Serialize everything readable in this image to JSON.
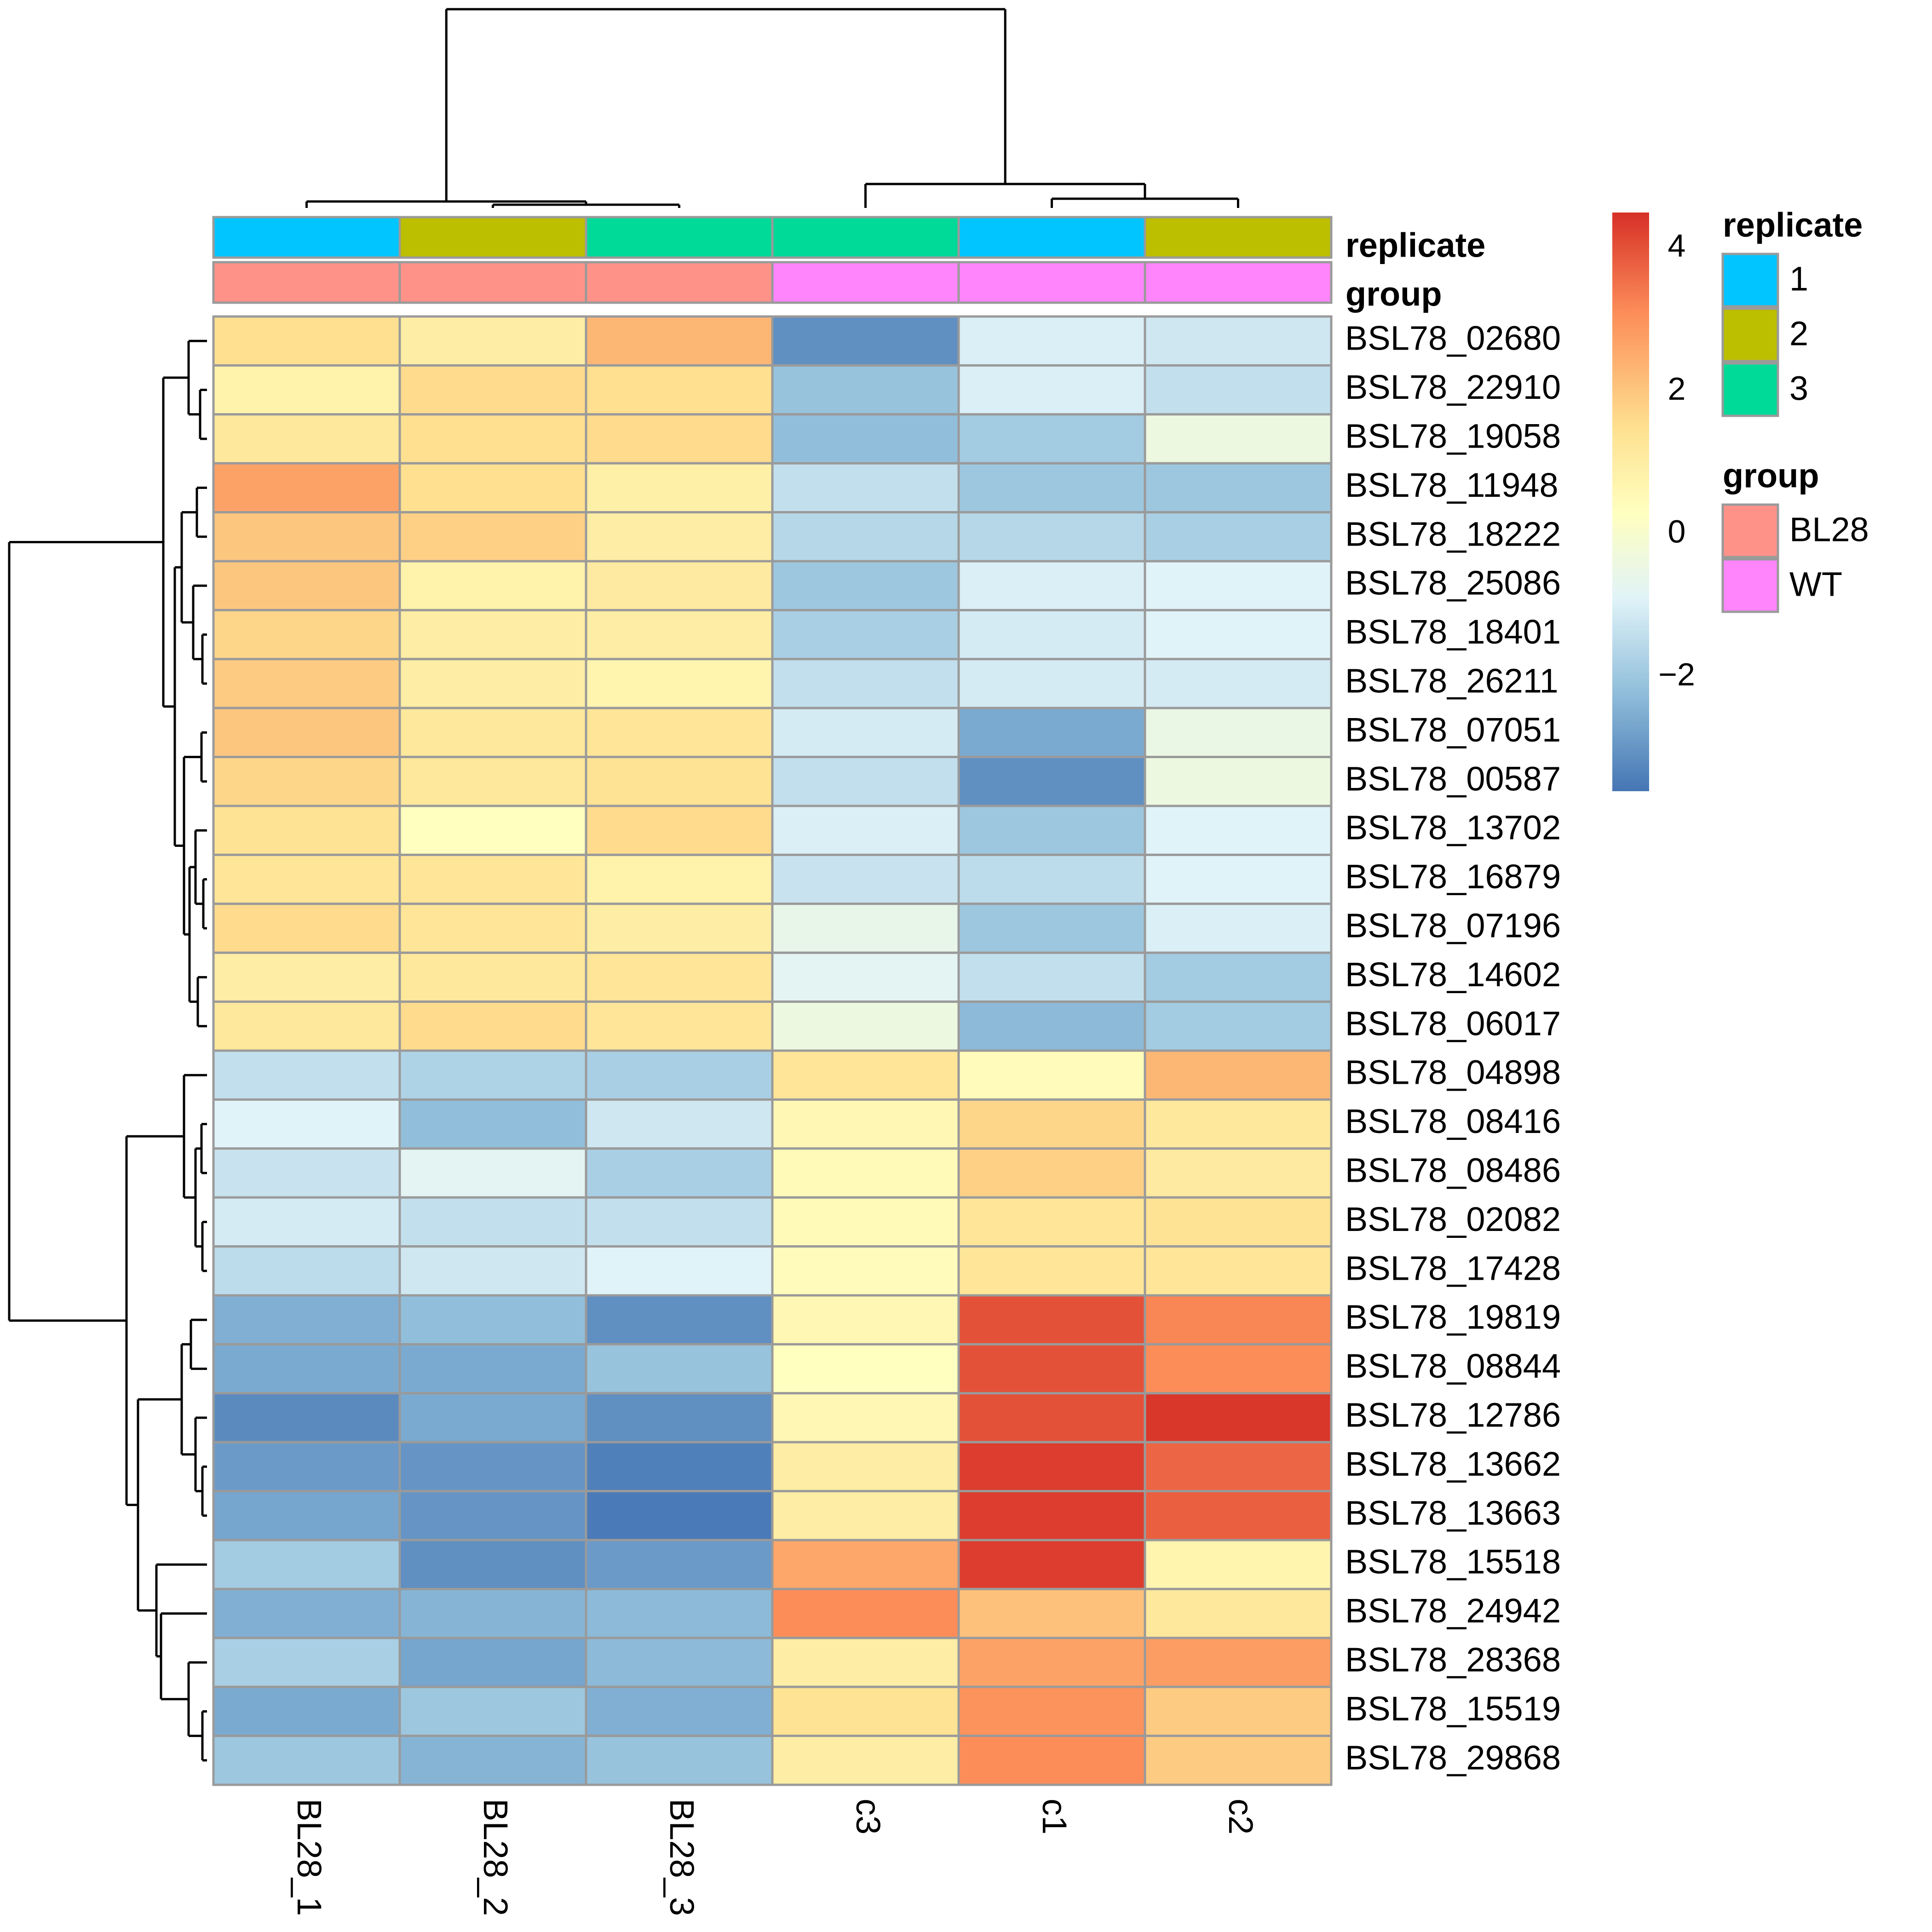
{
  "chart_data": {
    "type": "heatmap",
    "columns": [
      "BL28_1",
      "BL28_2",
      "BL28_3",
      "c3",
      "c1",
      "c2"
    ],
    "rows": [
      "BSL78_02680",
      "BSL78_22910",
      "BSL78_19058",
      "BSL78_11948",
      "BSL78_18222",
      "BSL78_25086",
      "BSL78_18401",
      "BSL78_26211",
      "BSL78_07051",
      "BSL78_00587",
      "BSL78_13702",
      "BSL78_16879",
      "BSL78_07196",
      "BSL78_14602",
      "BSL78_06017",
      "BSL78_04898",
      "BSL78_08416",
      "BSL78_08486",
      "BSL78_02082",
      "BSL78_17428",
      "BSL78_19819",
      "BSL78_08844",
      "BSL78_12786",
      "BSL78_13662",
      "BSL78_13663",
      "BSL78_15518",
      "BSL78_24942",
      "BSL78_28368",
      "BSL78_15519",
      "BSL78_29868"
    ],
    "values": [
      [
        1.5,
        1.0,
        2.3,
        -3.1,
        -1.0,
        -1.2
      ],
      [
        0.8,
        1.6,
        1.5,
        -2.1,
        -1.0,
        -1.4
      ],
      [
        1.2,
        1.5,
        1.6,
        -2.2,
        -1.9,
        -0.4
      ],
      [
        2.7,
        1.5,
        0.9,
        -1.4,
        -2.0,
        -2.0
      ],
      [
        2.0,
        1.8,
        1.0,
        -1.6,
        -1.6,
        -1.8
      ],
      [
        2.0,
        0.8,
        1.1,
        -2.0,
        -1.0,
        -0.9
      ],
      [
        1.7,
        1.0,
        1.0,
        -1.8,
        -1.1,
        -0.9
      ],
      [
        1.9,
        1.0,
        0.7,
        -1.4,
        -1.1,
        -1.1
      ],
      [
        2.0,
        1.2,
        1.3,
        -1.1,
        -2.6,
        -0.5
      ],
      [
        1.7,
        1.2,
        1.4,
        -1.4,
        -3.1,
        -0.4
      ],
      [
        1.4,
        0.3,
        1.6,
        -1.0,
        -2.0,
        -0.9
      ],
      [
        1.3,
        1.3,
        0.8,
        -1.3,
        -1.5,
        -0.9
      ],
      [
        1.6,
        1.3,
        1.0,
        -0.6,
        -2.0,
        -1.0
      ],
      [
        1.0,
        1.2,
        1.3,
        -0.8,
        -1.4,
        -1.9
      ],
      [
        1.2,
        1.6,
        1.3,
        -0.4,
        -2.3,
        -1.9
      ],
      [
        -1.4,
        -1.7,
        -1.8,
        1.3,
        0.4,
        2.3
      ],
      [
        -0.9,
        -2.2,
        -1.2,
        0.6,
        1.7,
        1.2
      ],
      [
        -1.3,
        -0.8,
        -1.8,
        0.5,
        1.8,
        1.1
      ],
      [
        -1.1,
        -1.4,
        -1.4,
        0.5,
        1.3,
        1.4
      ],
      [
        -1.5,
        -1.2,
        -0.9,
        0.4,
        1.3,
        1.3
      ],
      [
        -2.5,
        -2.2,
        -3.1,
        0.6,
        4.0,
        3.2
      ],
      [
        -2.6,
        -2.6,
        -2.1,
        0.3,
        4.0,
        3.1
      ],
      [
        -3.2,
        -2.6,
        -3.1,
        0.6,
        4.0,
        4.4
      ],
      [
        -2.9,
        -3.0,
        -3.4,
        1.0,
        4.3,
        3.7
      ],
      [
        -2.7,
        -3.0,
        -3.5,
        1.0,
        4.3,
        3.8
      ],
      [
        -1.9,
        -3.1,
        -2.9,
        2.6,
        4.3,
        0.7
      ],
      [
        -2.5,
        -2.4,
        -2.3,
        3.1,
        2.1,
        1.2
      ],
      [
        -1.8,
        -2.7,
        -2.3,
        1.0,
        2.7,
        2.8
      ],
      [
        -2.6,
        -2.0,
        -2.5,
        1.4,
        3.0,
        1.9
      ],
      [
        -2.0,
        -2.4,
        -2.1,
        1.0,
        3.1,
        1.9
      ]
    ],
    "color_scale": {
      "colors": [
        "#4575b4",
        "#91bfdb",
        "#e0f3f8",
        "#ffffbf",
        "#fee090",
        "#fc8d59",
        "#d73027"
      ],
      "stops": [
        -3.6,
        -2.2,
        -0.9,
        0.3,
        1.5,
        3.1,
        4.5
      ],
      "ticks": [
        "4",
        "2",
        "0",
        "−2"
      ],
      "tick_values": [
        4,
        2,
        0,
        -2
      ]
    },
    "annotations": {
      "replicate": [
        "1",
        "2",
        "3",
        "3",
        "1",
        "2"
      ],
      "group": [
        "BL28",
        "BL28",
        "BL28",
        "WT",
        "WT",
        "WT"
      ]
    },
    "legend": {
      "replicate": {
        "title": "replicate",
        "items": [
          {
            "label": "1",
            "color": "#00c5ff"
          },
          {
            "label": "2",
            "color": "#bcbe00"
          },
          {
            "label": "3",
            "color": "#00da98"
          }
        ]
      },
      "group": {
        "title": "group",
        "items": [
          {
            "label": "BL28",
            "color": "#fe9289"
          },
          {
            "label": "WT",
            "color": "#ff85fd"
          }
        ]
      }
    },
    "annotation_labels": [
      "replicate",
      "group"
    ],
    "column_dendrogram": true,
    "row_dendrogram": true
  }
}
